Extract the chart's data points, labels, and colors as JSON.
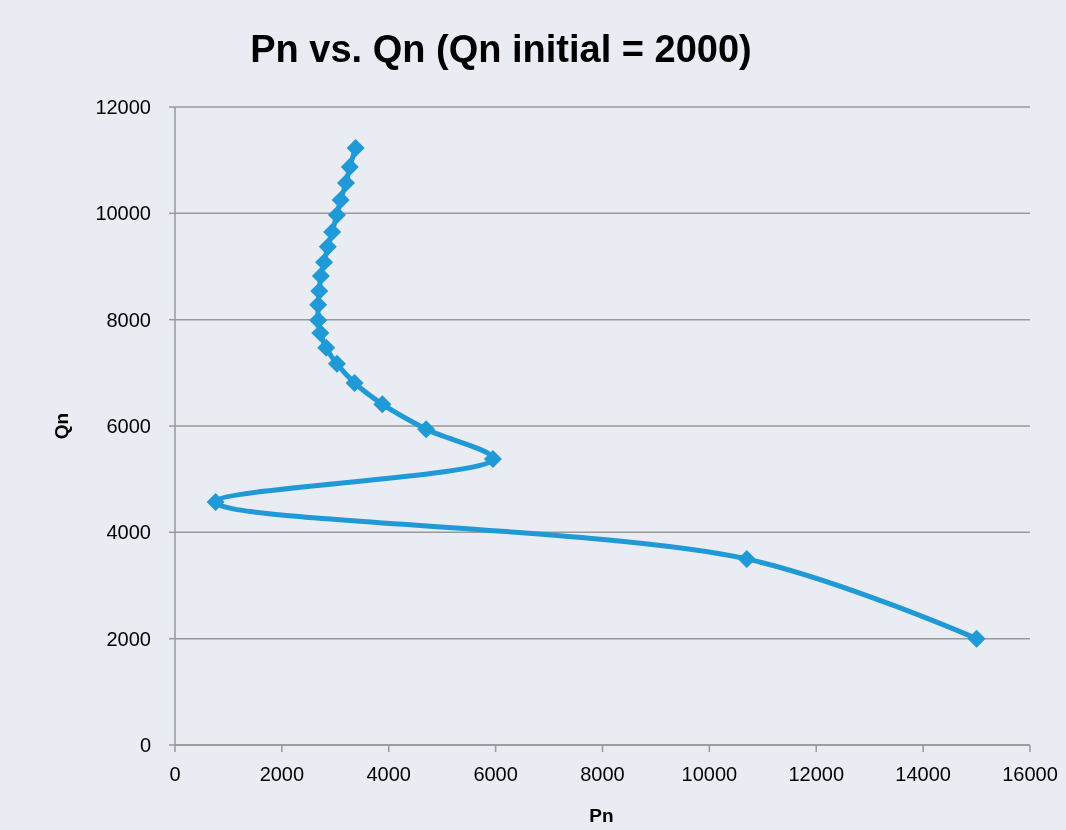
{
  "chart_data": {
    "type": "line",
    "title": "Pn vs. Qn (Qn initial = 2000)",
    "xlabel": "Pn",
    "ylabel": "Qn",
    "series": [
      {
        "color": "#1f9ad6",
        "x": [
          15000,
          10700,
          760,
          5950,
          4700,
          3880,
          3360,
          3030,
          2830,
          2720,
          2680,
          2680,
          2700,
          2730,
          2790,
          2860,
          2940,
          3030,
          3100,
          3200,
          3270,
          3380
        ],
        "values": [
          2000,
          3500,
          4570,
          5380,
          5940,
          6410,
          6810,
          7170,
          7470,
          7750,
          7990,
          8280,
          8540,
          8820,
          9080,
          9370,
          9650,
          9970,
          10250,
          10570,
          10870,
          11230
        ]
      }
    ],
    "xlim": [
      0,
      16000
    ],
    "xticks": [
      0,
      2000,
      4000,
      6000,
      8000,
      10000,
      12000,
      14000,
      16000
    ],
    "ylim": [
      0,
      12000
    ],
    "yticks": [
      0,
      2000,
      4000,
      6000,
      8000,
      10000,
      12000
    ],
    "grid": "y",
    "marker": "diamond",
    "line_style": "solid"
  }
}
